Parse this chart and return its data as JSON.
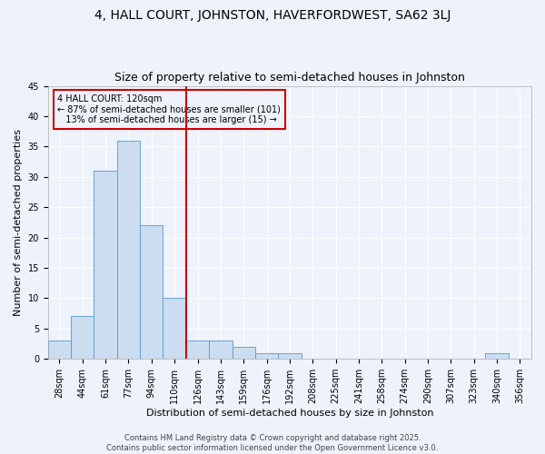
{
  "title1": "4, HALL COURT, JOHNSTON, HAVERFORDWEST, SA62 3LJ",
  "title2": "Size of property relative to semi-detached houses in Johnston",
  "xlabel": "Distribution of semi-detached houses by size in Johnston",
  "ylabel": "Number of semi-detached properties",
  "bin_labels": [
    "28sqm",
    "44sqm",
    "61sqm",
    "77sqm",
    "94sqm",
    "110sqm",
    "126sqm",
    "143sqm",
    "159sqm",
    "176sqm",
    "192sqm",
    "208sqm",
    "225sqm",
    "241sqm",
    "258sqm",
    "274sqm",
    "290sqm",
    "307sqm",
    "323sqm",
    "340sqm",
    "356sqm"
  ],
  "bin_counts": [
    3,
    7,
    31,
    36,
    22,
    10,
    3,
    3,
    2,
    1,
    1,
    0,
    0,
    0,
    0,
    0,
    0,
    0,
    0,
    1,
    0
  ],
  "bar_color": "#ccddef",
  "bar_edge_color": "#5599cc",
  "vline_x_index": 5.5,
  "vline_color": "#cc0000",
  "annotation_line1": "4 HALL COURT: 120sqm",
  "annotation_line2": "← 87% of semi-detached houses are smaller (101)",
  "annotation_line3": "   13% of semi-detached houses are larger (15) →",
  "annotation_box_color": "#cc0000",
  "background_color": "#eef2fb",
  "grid_color": "#ffffff",
  "ylim": [
    0,
    45
  ],
  "yticks": [
    0,
    5,
    10,
    15,
    20,
    25,
    30,
    35,
    40,
    45
  ],
  "footer_text": "Contains HM Land Registry data © Crown copyright and database right 2025.\nContains public sector information licensed under the Open Government Licence v3.0.",
  "title1_fontsize": 10,
  "title2_fontsize": 9,
  "tick_fontsize": 7,
  "ylabel_fontsize": 8,
  "xlabel_fontsize": 8,
  "footer_fontsize": 6
}
